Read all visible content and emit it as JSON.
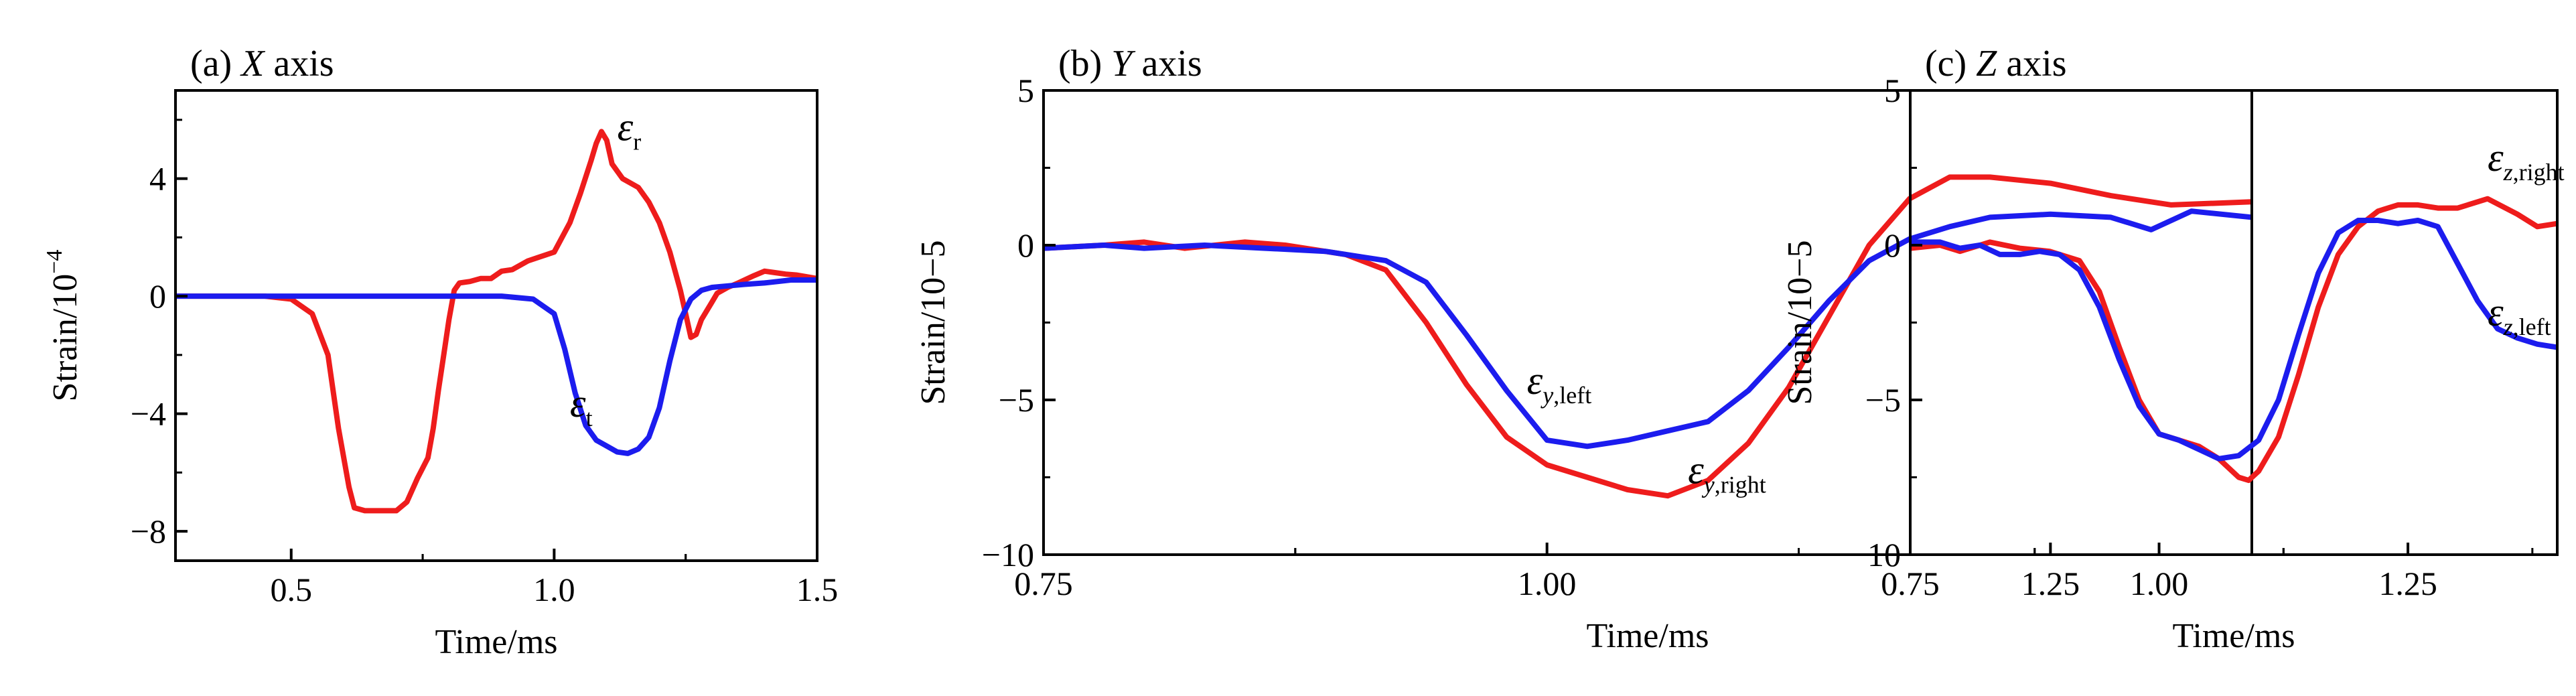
{
  "chart_data": [
    {
      "type": "line",
      "title_prefix": "(a)",
      "title_italic": "X",
      "title_suffix": "axis",
      "xlabel": "Time/ms",
      "ylabel_main": "Strain/10",
      "ylabel_exp": "−4",
      "xlim": [
        0.28,
        1.5
      ],
      "ylim": [
        -9,
        7
      ],
      "xticks": [
        0.5,
        1.0,
        1.5
      ],
      "xtick_labels": [
        "0.5",
        "1.0",
        "1.5"
      ],
      "yticks": [
        -8,
        -4,
        0,
        4
      ],
      "ytick_labels": [
        "−8",
        "−4",
        "0",
        "4"
      ],
      "series": [
        {
          "color": "#ee1c1c",
          "label_main": "ε",
          "label_sub": "r",
          "label_sub_italic": "",
          "label_sub_rest": "",
          "label_at": [
            1.12,
            5.3
          ],
          "x": [
            0.28,
            0.45,
            0.5,
            0.54,
            0.57,
            0.59,
            0.61,
            0.62,
            0.64,
            0.67,
            0.7,
            0.72,
            0.74,
            0.76,
            0.77,
            0.78,
            0.79,
            0.8,
            0.81,
            0.82,
            0.84,
            0.86,
            0.88,
            0.9,
            0.92,
            0.95,
            1.0,
            1.03,
            1.05,
            1.07,
            1.08,
            1.09,
            1.1,
            1.11,
            1.13,
            1.16,
            1.18,
            1.2,
            1.22,
            1.24,
            1.25,
            1.26,
            1.27,
            1.28,
            1.3,
            1.31,
            1.33,
            1.35,
            1.38,
            1.4,
            1.42,
            1.44,
            1.46,
            1.5
          ],
          "y": [
            0,
            0,
            -0.1,
            -0.6,
            -2,
            -4.5,
            -6.5,
            -7.2,
            -7.3,
            -7.3,
            -7.3,
            -7,
            -6.2,
            -5.5,
            -4.5,
            -3.2,
            -2,
            -0.8,
            0.2,
            0.45,
            0.5,
            0.6,
            0.6,
            0.85,
            0.9,
            1.2,
            1.5,
            2.5,
            3.5,
            4.6,
            5.2,
            5.6,
            5.3,
            4.5,
            4,
            3.7,
            3.2,
            2.5,
            1.5,
            0.2,
            -0.6,
            -1.4,
            -1.3,
            -0.8,
            -0.2,
            0.1,
            0.3,
            0.45,
            0.7,
            0.85,
            0.8,
            0.75,
            0.72,
            0.6
          ]
        },
        {
          "color": "#1c1cee",
          "label_main": "ε",
          "label_sub": "t",
          "label_sub_italic": "",
          "label_sub_rest": "",
          "label_at": [
            1.03,
            -4.1
          ],
          "x": [
            0.28,
            0.5,
            0.7,
            0.9,
            0.96,
            1.0,
            1.02,
            1.04,
            1.06,
            1.08,
            1.1,
            1.12,
            1.14,
            1.16,
            1.18,
            1.2,
            1.22,
            1.24,
            1.26,
            1.28,
            1.3,
            1.33,
            1.36,
            1.4,
            1.45,
            1.5
          ],
          "y": [
            0,
            0,
            0,
            0,
            -0.1,
            -0.6,
            -1.8,
            -3.3,
            -4.4,
            -4.9,
            -5.1,
            -5.3,
            -5.35,
            -5.2,
            -4.8,
            -3.8,
            -2.2,
            -0.8,
            -0.1,
            0.2,
            0.3,
            0.35,
            0.4,
            0.45,
            0.55,
            0.55
          ]
        }
      ]
    },
    {
      "type": "line",
      "title_prefix": "(b)",
      "title_italic": "Y",
      "title_suffix": "axis",
      "xlabel": "Time/ms",
      "ylabel_main": "Strain/10−5",
      "ylabel_exp": "",
      "xlim": [
        0.75,
        1.35
      ],
      "ylim": [
        -10,
        5
      ],
      "xticks": [
        0.75,
        1.0,
        1.25
      ],
      "xtick_labels": [
        "0.75",
        "1.00",
        "1.25"
      ],
      "yticks": [
        -10,
        -5,
        0,
        5
      ],
      "ytick_labels": [
        "−10",
        "−5",
        "0",
        "5"
      ],
      "series": [
        {
          "color": "#ee1c1c",
          "label_main": "ε",
          "label_sub": "",
          "label_sub_italic": "y",
          "label_sub_rest": ",right",
          "label_at": [
            1.07,
            -7.7
          ],
          "x": [
            0.75,
            0.78,
            0.8,
            0.82,
            0.85,
            0.87,
            0.9,
            0.92,
            0.94,
            0.96,
            0.98,
            1.0,
            1.02,
            1.04,
            1.06,
            1.08,
            1.1,
            1.12,
            1.14,
            1.16,
            1.18,
            1.2,
            1.22,
            1.25,
            1.28,
            1.31,
            1.35
          ],
          "y": [
            -0.1,
            0,
            0.1,
            -0.1,
            0.1,
            0,
            -0.3,
            -0.8,
            -2.5,
            -4.5,
            -6.2,
            -7.1,
            -7.5,
            -7.9,
            -8.1,
            -7.6,
            -6.4,
            -4.6,
            -2.3,
            0,
            1.5,
            2.2,
            2.2,
            2,
            1.6,
            1.3,
            1.4
          ]
        },
        {
          "color": "#1c1cee",
          "label_main": "ε",
          "label_sub": "",
          "label_sub_italic": "y",
          "label_sub_rest": ",left",
          "label_at": [
            0.99,
            -4.8
          ],
          "x": [
            0.75,
            0.78,
            0.8,
            0.83,
            0.86,
            0.89,
            0.92,
            0.94,
            0.96,
            0.98,
            1.0,
            1.02,
            1.04,
            1.06,
            1.08,
            1.1,
            1.12,
            1.14,
            1.16,
            1.18,
            1.2,
            1.22,
            1.25,
            1.28,
            1.3,
            1.32,
            1.35
          ],
          "y": [
            -0.1,
            0,
            -0.1,
            0,
            -0.1,
            -0.2,
            -0.5,
            -1.2,
            -2.9,
            -4.7,
            -6.3,
            -6.5,
            -6.3,
            -6,
            -5.7,
            -4.7,
            -3.3,
            -1.8,
            -0.5,
            0.2,
            0.6,
            0.9,
            1,
            0.9,
            0.5,
            1.1,
            0.9
          ]
        }
      ]
    },
    {
      "type": "line",
      "title_prefix": "(c)",
      "title_italic": "Z",
      "title_suffix": "axis",
      "xlabel": "Time/ms",
      "ylabel_main": "Strain/10−5",
      "ylabel_exp": "",
      "xlim": [
        0.75,
        1.4
      ],
      "ylim": [
        -10,
        5
      ],
      "xticks": [
        0.75,
        1.0,
        1.25
      ],
      "xtick_labels": [
        "0.75",
        "1.00",
        "1.25"
      ],
      "yticks": [
        -10,
        -5,
        0,
        5
      ],
      "ytick_labels": [
        "−10",
        "−5",
        "0",
        "5"
      ],
      "series": [
        {
          "color": "#ee1c1c",
          "label_main": "ε",
          "label_sub": "",
          "label_sub_italic": "z",
          "label_sub_rest": ",right",
          "label_at": [
            1.33,
            2.4
          ],
          "x": [
            0.75,
            0.78,
            0.8,
            0.83,
            0.86,
            0.89,
            0.92,
            0.94,
            0.96,
            0.98,
            1.0,
            1.02,
            1.04,
            1.06,
            1.08,
            1.09,
            1.1,
            1.12,
            1.14,
            1.16,
            1.18,
            1.2,
            1.22,
            1.24,
            1.26,
            1.28,
            1.3,
            1.33,
            1.36,
            1.38,
            1.4
          ],
          "y": [
            -0.1,
            0,
            -0.2,
            0.1,
            -0.1,
            -0.2,
            -0.5,
            -1.5,
            -3.3,
            -5,
            -6.1,
            -6.3,
            -6.5,
            -6.9,
            -7.5,
            -7.6,
            -7.3,
            -6.2,
            -4.2,
            -2,
            -0.3,
            0.6,
            1.1,
            1.3,
            1.3,
            1.2,
            1.2,
            1.5,
            1,
            0.6,
            0.7
          ]
        },
        {
          "color": "#1c1cee",
          "label_main": "ε",
          "label_sub": "",
          "label_sub_italic": "z",
          "label_sub_rest": ",left",
          "label_at": [
            1.33,
            -2.6
          ],
          "x": [
            0.75,
            0.78,
            0.8,
            0.82,
            0.84,
            0.86,
            0.88,
            0.9,
            0.92,
            0.94,
            0.96,
            0.98,
            1.0,
            1.02,
            1.04,
            1.06,
            1.08,
            1.1,
            1.12,
            1.14,
            1.16,
            1.18,
            1.2,
            1.22,
            1.24,
            1.26,
            1.28,
            1.3,
            1.32,
            1.34,
            1.36,
            1.38,
            1.4
          ],
          "y": [
            0.1,
            0.1,
            -0.1,
            0,
            -0.3,
            -0.3,
            -0.2,
            -0.3,
            -0.8,
            -2,
            -3.7,
            -5.2,
            -6.1,
            -6.3,
            -6.6,
            -6.9,
            -6.8,
            -6.3,
            -5,
            -2.9,
            -0.9,
            0.4,
            0.8,
            0.8,
            0.7,
            0.8,
            0.6,
            -0.6,
            -1.8,
            -2.7,
            -3,
            -3.2,
            -3.3
          ]
        }
      ]
    }
  ]
}
